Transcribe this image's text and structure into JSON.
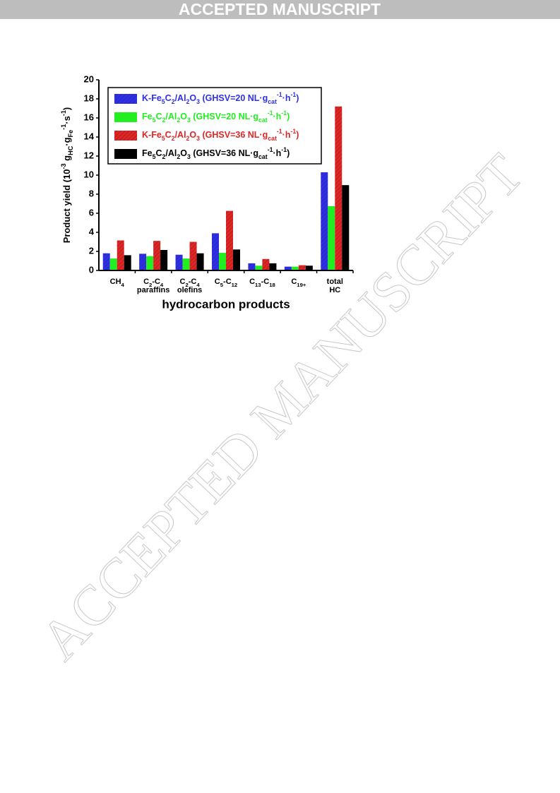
{
  "header": "ACCEPTED MANUSCRIPT",
  "watermark": "ACCEPTED MANUSCRIPT",
  "chart_data": {
    "type": "bar",
    "xlabel": "hydrocarbon products",
    "ylabel": [
      "Product yield (10",
      {
        "sup": "-3"
      },
      " g",
      {
        "sub": "HC"
      },
      "·g",
      {
        "sub": "Fe"
      },
      {
        "sup": "-1"
      },
      "·s",
      {
        "sup": "-1"
      },
      ")"
    ],
    "categories": [
      [
        [
          "CH",
          {
            "sub": "4"
          }
        ]
      ],
      [
        [
          "C",
          {
            "sub": "2"
          },
          "-C",
          {
            "sub": "4"
          }
        ],
        [
          "paraffins"
        ]
      ],
      [
        [
          "C",
          {
            "sub": "2"
          },
          "-C",
          {
            "sub": "4"
          }
        ],
        [
          "olefins"
        ]
      ],
      [
        [
          "C",
          {
            "sub": "5"
          },
          "-C",
          {
            "sub": "12"
          }
        ]
      ],
      [
        [
          "C",
          {
            "sub": "13"
          },
          "-C",
          {
            "sub": "18"
          }
        ]
      ],
      [
        [
          "C",
          {
            "sub": "19+"
          }
        ]
      ],
      [
        [
          "total"
        ],
        [
          "HC"
        ]
      ]
    ],
    "series": [
      {
        "name": [
          "K-Fe",
          {
            "sub": "5"
          },
          "C",
          {
            "sub": "2"
          },
          "/Al",
          {
            "sub": "2"
          },
          "O",
          {
            "sub": "3"
          },
          "  (GHSV=20 NL·g",
          {
            "sub": "cat"
          },
          {
            "sup": "-1"
          },
          "·h",
          {
            "sup": "-1"
          },
          ")"
        ],
        "color": "#2f2fe8",
        "hatch": true,
        "values": [
          1.8,
          1.75,
          1.65,
          3.9,
          0.75,
          0.4,
          10.3
        ]
      },
      {
        "name": [
          "Fe",
          {
            "sub": "5"
          },
          "C",
          {
            "sub": "2"
          },
          "/Al",
          {
            "sub": "2"
          },
          "O",
          {
            "sub": "3"
          },
          "  (GHSV=20 NL·g",
          {
            "sub": "cat"
          },
          {
            "sup": "-1"
          },
          "·h",
          {
            "sup": "-1"
          },
          ")"
        ],
        "color": "#22ee22",
        "hatch": false,
        "values": [
          1.25,
          1.5,
          1.25,
          1.85,
          0.5,
          0.4,
          6.75
        ]
      },
      {
        "name": [
          "K-Fe",
          {
            "sub": "5"
          },
          "C",
          {
            "sub": "2"
          },
          "/Al",
          {
            "sub": "2"
          },
          "O",
          {
            "sub": "3"
          },
          "  (GHSV=36 NL·g",
          {
            "sub": "cat"
          },
          {
            "sup": "-1"
          },
          "·h",
          {
            "sup": "-1"
          },
          ")"
        ],
        "color": "#e02525",
        "hatch": true,
        "values": [
          3.15,
          3.1,
          3.0,
          6.25,
          1.2,
          0.55,
          17.2
        ]
      },
      {
        "name": [
          "Fe",
          {
            "sub": "5"
          },
          "C",
          {
            "sub": "2"
          },
          "/Al",
          {
            "sub": "2"
          },
          "O",
          {
            "sub": "3"
          },
          "  (GHSV=36 NL·g",
          {
            "sub": "cat"
          },
          {
            "sup": "-1"
          },
          "·h",
          {
            "sup": "-1"
          },
          ")"
        ],
        "color": "#000000",
        "hatch": false,
        "values": [
          1.6,
          2.15,
          1.8,
          2.2,
          0.75,
          0.5,
          8.95
        ]
      }
    ],
    "ylim": [
      0,
      20
    ],
    "yticks": [
      0,
      2,
      4,
      6,
      8,
      10,
      12,
      14,
      16,
      18,
      20
    ]
  }
}
